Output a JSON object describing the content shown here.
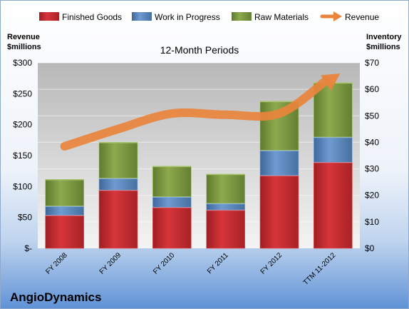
{
  "chart_data": {
    "type": "bar",
    "subtitle": "12-Month Periods",
    "company": "AngioDynamics",
    "categories": [
      "FY 2008",
      "FY 2009",
      "FY 2010",
      "FY 2011",
      "FY 2012",
      "TTM 11-2012"
    ],
    "series": [
      {
        "name": "Finished Goods",
        "axis": "right",
        "color": "#C0282D",
        "values": [
          12.5,
          22,
          15.5,
          14.5,
          27.5,
          32.5
        ]
      },
      {
        "name": "Work in Progress",
        "axis": "right",
        "color": "#4F81BD",
        "values": [
          3.5,
          4.5,
          4,
          2.5,
          9.5,
          9.5
        ]
      },
      {
        "name": "Raw Materials",
        "axis": "right",
        "color": "#77933C",
        "values": [
          10,
          13.5,
          11.5,
          11,
          18.5,
          20.5
        ]
      }
    ],
    "line_series": {
      "name": "Revenue",
      "axis": "left",
      "color": "#E9843C",
      "values": [
        165,
        193,
        218,
        216,
        218,
        275
      ]
    },
    "left_axis": {
      "title": "Revenue\n$millions",
      "ylim": [
        0,
        300
      ],
      "ticks": [
        "$-",
        "$50",
        "$100",
        "$150",
        "$200",
        "$250",
        "$300"
      ]
    },
    "right_axis": {
      "title": "Inventory\n$millions",
      "ylim": [
        0,
        70
      ],
      "ticks": [
        "$0",
        "$10",
        "$20",
        "$30",
        "$40",
        "$50",
        "$60",
        "$70"
      ]
    },
    "legend": {
      "placement": "top",
      "items": [
        "Finished Goods",
        "Work in Progress",
        "Raw Materials",
        "Revenue"
      ]
    },
    "grid": true
  }
}
